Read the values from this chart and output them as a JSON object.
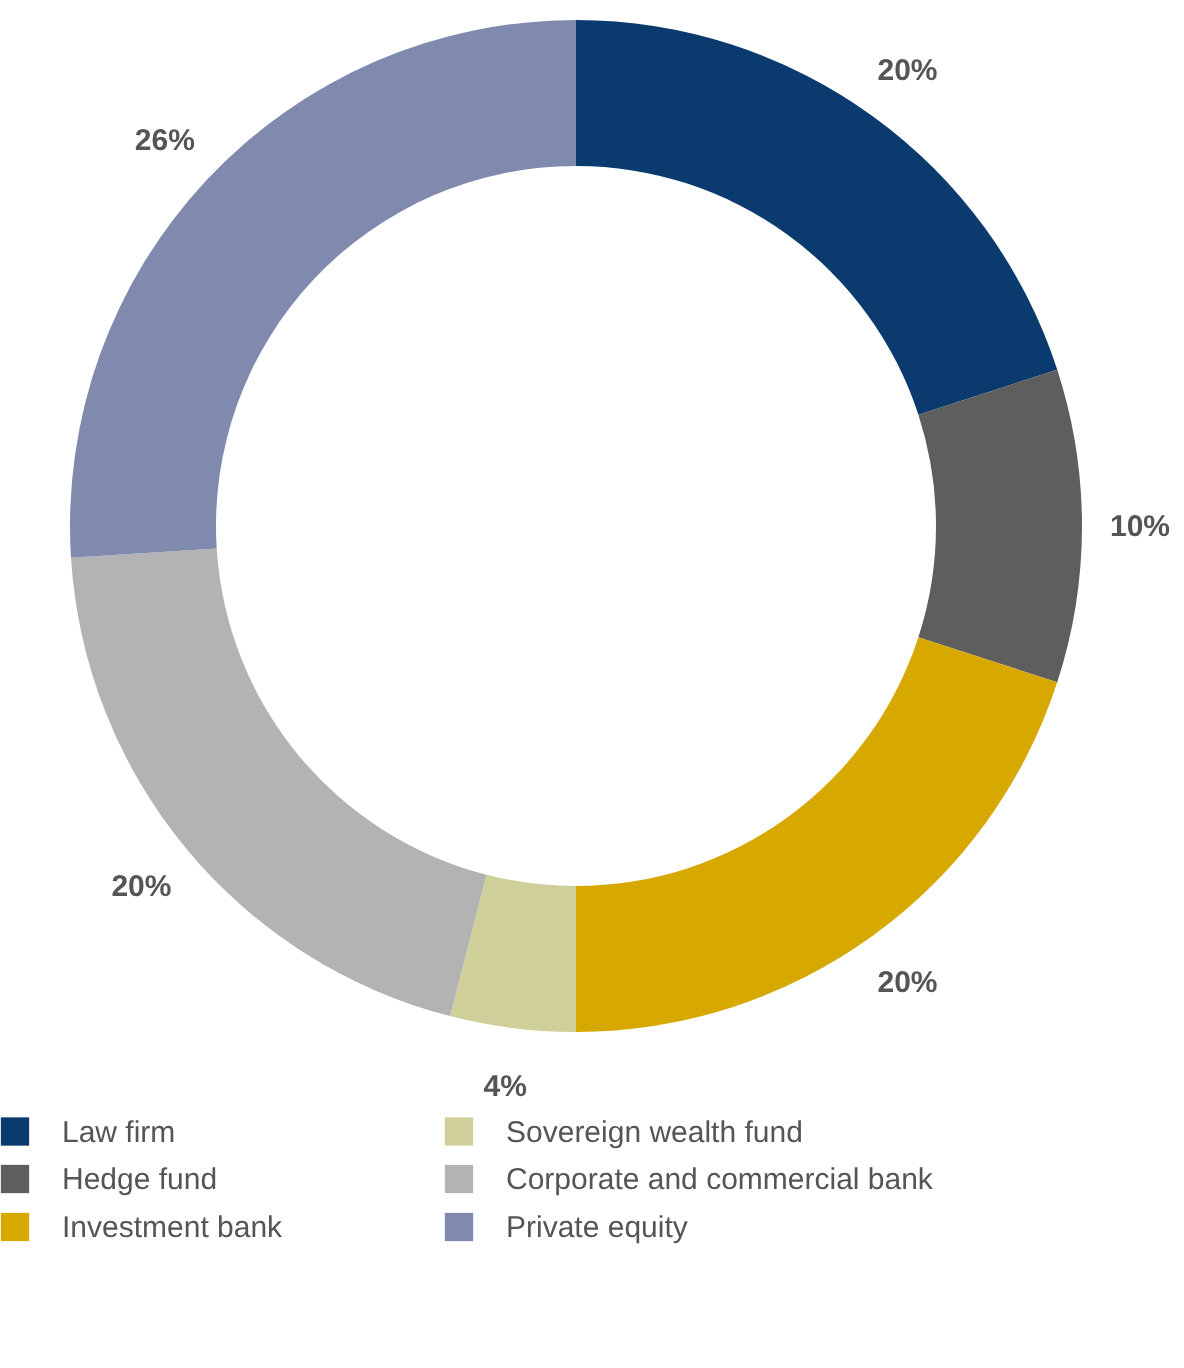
{
  "chart_data": {
    "type": "donut",
    "categories": [
      "Law firm",
      "Hedge fund",
      "Investment bank",
      "Sovereign wealth fund",
      "Corporate and commercial bank",
      "Private equity"
    ],
    "values": [
      20,
      10,
      20,
      4,
      20,
      26
    ],
    "value_labels": [
      "20%",
      "10%",
      "20%",
      "4%",
      "20%",
      "26%"
    ],
    "colors": [
      "#0a3a6e",
      "#5e5e5e",
      "#d6a800",
      "#cfcf99",
      "#b3b3b3",
      "#8089ae"
    ],
    "legend": "bottom"
  }
}
